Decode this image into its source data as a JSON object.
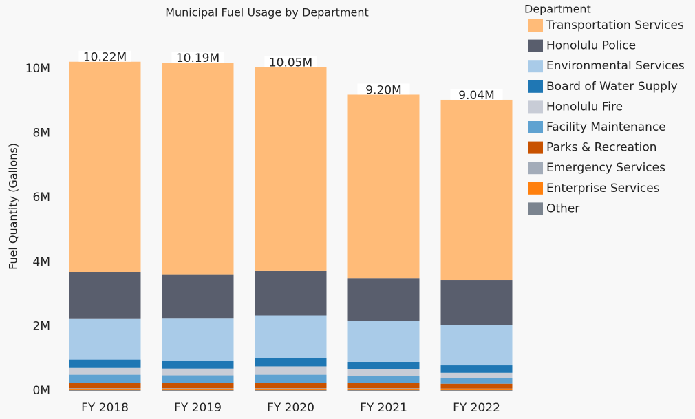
{
  "chart_data": {
    "type": "stacked_bar",
    "title": "Municipal Fuel Usage by Department",
    "ylabel": "Fuel Quantity (Gallons)",
    "legend_title": "Department",
    "legend": "right",
    "categories": [
      "FY 2018",
      "FY 2019",
      "FY 2020",
      "FY 2021",
      "FY 2022"
    ],
    "ylim": [
      0,
      10800000
    ],
    "yticks": [
      {
        "value": 0,
        "label": "0M"
      },
      {
        "value": 2000000,
        "label": "2M"
      },
      {
        "value": 4000000,
        "label": "4M"
      },
      {
        "value": 6000000,
        "label": "6M"
      },
      {
        "value": 8000000,
        "label": "8M"
      },
      {
        "value": 10000000,
        "label": "10M"
      }
    ],
    "totals": [
      10220000,
      10190000,
      10050000,
      9200000,
      9040000
    ],
    "total_labels": [
      "10.22M",
      "10.19M",
      "10.05M",
      "9.20M",
      "9.04M"
    ],
    "series": [
      {
        "name": "Transportation Services",
        "color": "#ffbb78",
        "values": [
          6540000,
          6570000,
          6330000,
          5700000,
          5600000
        ]
      },
      {
        "name": "Honolulu Police",
        "color": "#595e6d",
        "values": [
          1430000,
          1360000,
          1380000,
          1340000,
          1390000
        ]
      },
      {
        "name": "Environmental Services",
        "color": "#a9cbe8",
        "values": [
          1280000,
          1330000,
          1320000,
          1260000,
          1260000
        ]
      },
      {
        "name": "Board of Water Supply",
        "color": "#1f77b4",
        "values": [
          260000,
          240000,
          260000,
          230000,
          230000
        ]
      },
      {
        "name": "Honolulu Fire",
        "color": "#c8ccd6",
        "values": [
          210000,
          210000,
          260000,
          210000,
          170000
        ]
      },
      {
        "name": "Facility Maintenance",
        "color": "#5fa2d1",
        "values": [
          250000,
          230000,
          250000,
          210000,
          170000
        ]
      },
      {
        "name": "Parks & Recreation",
        "color": "#c85200",
        "values": [
          170000,
          170000,
          170000,
          170000,
          150000
        ]
      },
      {
        "name": "Emergency Services",
        "color": "#a3acb9",
        "values": [
          30000,
          30000,
          30000,
          30000,
          20000
        ]
      },
      {
        "name": "Enterprise Services",
        "color": "#ff800e",
        "values": [
          30000,
          30000,
          30000,
          30000,
          30000
        ]
      },
      {
        "name": "Other",
        "color": "#7b848f",
        "values": [
          20000,
          20000,
          20000,
          20000,
          20000
        ]
      }
    ]
  }
}
